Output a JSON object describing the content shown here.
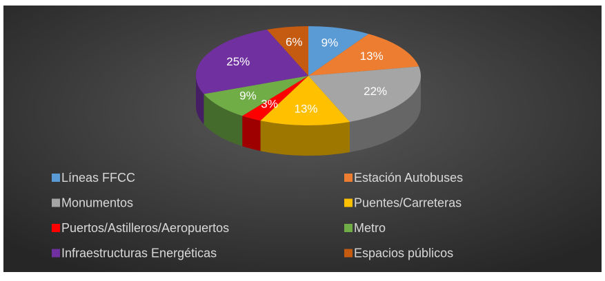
{
  "chart_data": {
    "type": "pie",
    "categories": [
      "Líneas FFCC",
      "Estación Autobuses",
      "Monumentos",
      "Puentes/Carreteras",
      "Puertos/Astilleros/Aeropuertos",
      "Metro",
      "Infraestructuras Energéticas",
      "Espacios públicos"
    ],
    "values": [
      9,
      13,
      22,
      13,
      3,
      9,
      25,
      6
    ],
    "value_labels": [
      "9%",
      "13%",
      "22%",
      "13%",
      "3%",
      "9%",
      "25%",
      "6%"
    ],
    "colors": [
      "#5b9bd5",
      "#ed7d31",
      "#a5a5a5",
      "#ffc000",
      "#ff0000",
      "#70ad47",
      "#7030a0",
      "#c55a11"
    ],
    "legend": "bottom"
  }
}
